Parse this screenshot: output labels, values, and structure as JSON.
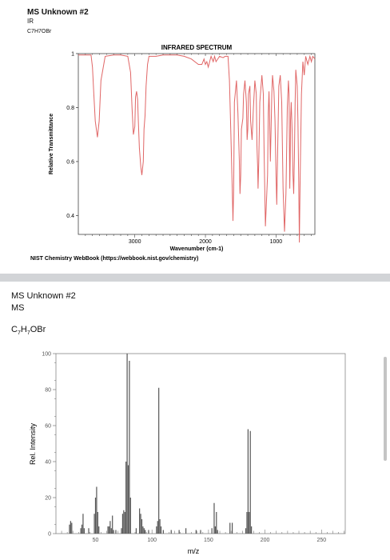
{
  "ir_section": {
    "title": "MS Unknown #2",
    "technique": "IR",
    "formula": "C7H7OBr",
    "footer": "NIST Chemistry WebBook (https://webbook.nist.gov/chemistry)"
  },
  "ms_section": {
    "title": "MS Unknown #2",
    "technique": "MS",
    "formula_parts": [
      "C",
      "7",
      "H",
      "7",
      "OBr"
    ]
  },
  "colors": {
    "ir_line": "#e06666",
    "ms_bars": "#555555",
    "divider": "#d2d4d7"
  },
  "chart_data": [
    {
      "type": "line",
      "title": "INFRARED SPECTRUM",
      "xlabel": "Wavenumber (cm-1)",
      "ylabel": "Relative Transmittance",
      "xlim": [
        3800,
        450
      ],
      "ylim": [
        0.33,
        1.0
      ],
      "x_reversed": true,
      "x_ticks": [
        3000,
        2000,
        1000
      ],
      "y_ticks": [
        0.4,
        0.6,
        0.8,
        1
      ],
      "y_tick_labels": [
        "0.4",
        "0.6",
        "0.8",
        "1"
      ],
      "grid": false,
      "series": [
        {
          "x": [
            3800,
            3650,
            3620,
            3600,
            3580,
            3560,
            3530,
            3505,
            3480,
            3420,
            3300,
            3200,
            3100,
            3060,
            3040,
            3020,
            3000,
            2990,
            2975,
            2960,
            2950,
            2935,
            2915,
            2900,
            2880,
            2870,
            2855,
            2840,
            2820,
            2800,
            2700,
            2600,
            2400,
            2300,
            2200,
            2100,
            2050,
            2020,
            2000,
            1980,
            1960,
            1920,
            1890,
            1870,
            1850,
            1800,
            1750,
            1720,
            1680,
            1660,
            1640,
            1620,
            1610,
            1600,
            1590,
            1560,
            1540,
            1520,
            1510,
            1500,
            1490,
            1470,
            1460,
            1440,
            1420,
            1410,
            1400,
            1390,
            1370,
            1360,
            1340,
            1320,
            1300,
            1280,
            1270,
            1260,
            1255,
            1245,
            1230,
            1200,
            1180,
            1170,
            1150,
            1120,
            1110,
            1100,
            1090,
            1080,
            1070,
            1060,
            1050,
            1030,
            1015,
            1000,
            990,
            980,
            960,
            940,
            920,
            900,
            880,
            860,
            840,
            825,
            815,
            810,
            805,
            800,
            795,
            785,
            770,
            760,
            750,
            740,
            730,
            720,
            700,
            690,
            680,
            670,
            660,
            640,
            620,
            600,
            580,
            550,
            520,
            500,
            480,
            450
          ],
          "y": [
            0.995,
            0.995,
            0.995,
            0.95,
            0.85,
            0.75,
            0.69,
            0.75,
            0.9,
            0.99,
            0.995,
            0.995,
            0.99,
            0.93,
            0.8,
            0.7,
            0.73,
            0.84,
            0.86,
            0.83,
            0.75,
            0.65,
            0.58,
            0.55,
            0.6,
            0.72,
            0.77,
            0.88,
            0.96,
            0.99,
            0.99,
            0.995,
            0.995,
            0.99,
            0.98,
            0.96,
            0.96,
            0.98,
            0.96,
            0.97,
            0.95,
            0.99,
            0.97,
            0.99,
            0.97,
            0.99,
            0.985,
            0.99,
            0.99,
            0.9,
            0.7,
            0.5,
            0.38,
            0.5,
            0.82,
            0.9,
            0.78,
            0.6,
            0.48,
            0.55,
            0.72,
            0.76,
            0.85,
            0.9,
            0.82,
            0.68,
            0.72,
            0.85,
            0.88,
            0.75,
            0.68,
            0.8,
            0.9,
            0.85,
            0.66,
            0.58,
            0.5,
            0.6,
            0.82,
            0.92,
            0.85,
            0.65,
            0.36,
            0.55,
            0.78,
            0.86,
            0.74,
            0.6,
            0.72,
            0.85,
            0.92,
            0.86,
            0.75,
            0.55,
            0.44,
            0.6,
            0.88,
            0.92,
            0.82,
            0.5,
            0.34,
            0.48,
            0.8,
            0.9,
            0.85,
            0.65,
            0.5,
            0.6,
            0.75,
            0.82,
            0.7,
            0.55,
            0.48,
            0.62,
            0.82,
            0.94,
            0.88,
            0.75,
            0.55,
            0.3,
            0.5,
            0.85,
            0.97,
            0.92,
            0.99,
            0.96,
            0.99,
            0.97,
            0.99,
            0.98
          ]
        }
      ]
    },
    {
      "type": "bar",
      "xlabel": "m/z",
      "ylabel": "Rel. Intensity",
      "xlim": [
        15,
        271
      ],
      "ylim": [
        0,
        100
      ],
      "x_ticks": [
        50,
        100,
        150,
        200,
        250
      ],
      "y_ticks": [
        0,
        20,
        40,
        60,
        80,
        100
      ],
      "grid": false,
      "peaks": {
        "x": [
          27,
          28,
          29,
          37,
          38,
          39,
          40,
          44,
          49,
          50,
          51,
          52,
          53,
          61,
          62,
          63,
          64,
          65,
          66,
          68,
          73,
          74,
          75,
          76,
          77,
          78,
          79,
          80,
          81,
          86,
          89,
          90,
          91,
          92,
          93,
          94,
          97,
          104,
          105,
          106,
          107,
          108,
          110,
          117,
          124,
          130,
          139,
          143,
          153,
          155,
          156,
          157,
          158,
          169,
          171,
          183,
          184,
          185,
          186,
          187,
          188
        ],
        "y": [
          5,
          7,
          6,
          3,
          5,
          11,
          3,
          3,
          11,
          20,
          26,
          12,
          4,
          4,
          4,
          7,
          3,
          10,
          2,
          2,
          3,
          11,
          13,
          12,
          40,
          100,
          38,
          96,
          20,
          3,
          14,
          11,
          8,
          4,
          3,
          2,
          2,
          4,
          7,
          81,
          8,
          4,
          2,
          2,
          2,
          3,
          2,
          2,
          3,
          17,
          4,
          12,
          2,
          6,
          6,
          3,
          12,
          58,
          12,
          57,
          4
        ]
      }
    }
  ]
}
